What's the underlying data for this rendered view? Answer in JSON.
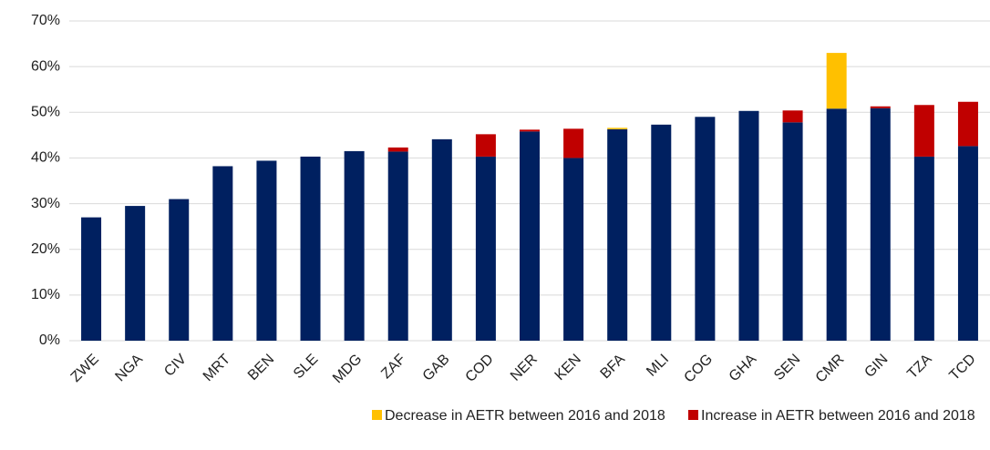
{
  "chart_data": {
    "type": "bar",
    "stacked": true,
    "categories": [
      "ZWE",
      "NGA",
      "CIV",
      "MRT",
      "BEN",
      "SLE",
      "MDG",
      "ZAF",
      "GAB",
      "COD",
      "NER",
      "KEN",
      "BFA",
      "MLI",
      "COG",
      "GHA",
      "SEN",
      "CMR",
      "GIN",
      "TZA",
      "TCD"
    ],
    "series": [
      {
        "color": "#002060",
        "values": [
          27,
          29.5,
          31,
          38.2,
          39.4,
          40.3,
          41.5,
          41.4,
          44.1,
          40.3,
          45.8,
          40.0,
          46.3,
          47.3,
          49.0,
          50.3,
          47.8,
          50.8,
          50.9,
          40.3,
          42.6
        ]
      },
      {
        "name": "Decrease in AETR between 2016 and 2018",
        "color": "#ffc000",
        "values": [
          0,
          0,
          0,
          0,
          0,
          0,
          0,
          0,
          0,
          0,
          0,
          0,
          0.3,
          0,
          0,
          0,
          0,
          12.2,
          0,
          0,
          0
        ]
      },
      {
        "name": "Increase in AETR between 2016 and 2018",
        "color": "#c00000",
        "values": [
          0,
          0,
          0,
          0,
          0,
          0,
          0,
          0.9,
          0,
          4.9,
          0.4,
          6.4,
          0,
          0,
          0,
          0,
          2.6,
          0,
          0.4,
          11.3,
          9.7
        ]
      }
    ],
    "ylim": [
      0,
      70
    ],
    "yticks": [
      {
        "value": 0,
        "label": "0%"
      },
      {
        "value": 10,
        "label": "10%"
      },
      {
        "value": 20,
        "label": "20%"
      },
      {
        "value": 30,
        "label": "30%"
      },
      {
        "value": 40,
        "label": "40%"
      },
      {
        "value": 50,
        "label": "50%"
      },
      {
        "value": 60,
        "label": "60%"
      },
      {
        "value": 70,
        "label": "70%"
      }
    ],
    "grid": true,
    "legend": "bottom"
  }
}
